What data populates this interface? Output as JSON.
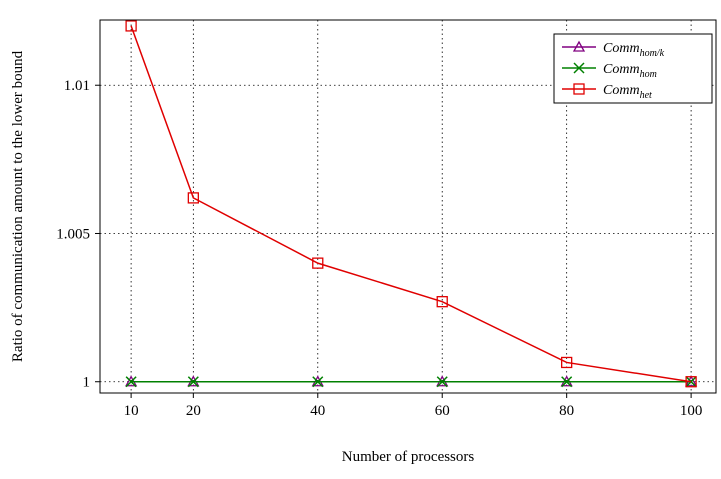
{
  "chart_data": {
    "type": "line",
    "xlabel": "Number of processors",
    "ylabel": "Ratio of communication amount to the lower bound",
    "x": [
      10,
      20,
      40,
      60,
      80,
      100
    ],
    "x_ticks": [
      "10",
      "20",
      "40",
      "60",
      "80",
      "100"
    ],
    "y_ticks": [
      "1",
      "1.005",
      "1.01"
    ],
    "y_tick_values": [
      1.0,
      1.005,
      1.01
    ],
    "xlim": [
      5,
      104
    ],
    "ylim": [
      0.99962,
      1.0122
    ],
    "grid": true,
    "legend_position": "top-right",
    "series": [
      {
        "name": "Comm",
        "subscript": "hom/k",
        "color": "#800080",
        "marker": "triangle",
        "values": [
          1.0,
          1.0,
          1.0,
          1.0,
          1.0,
          1.0
        ]
      },
      {
        "name": "Comm",
        "subscript": "hom",
        "color": "#008000",
        "marker": "x",
        "values": [
          1.0,
          1.0,
          1.0,
          1.0,
          1.0,
          1.0
        ]
      },
      {
        "name": "Comm",
        "subscript": "het",
        "color": "#e00000",
        "marker": "square",
        "values": [
          1.012,
          1.0062,
          1.004,
          1.0027,
          1.00065,
          1.0
        ]
      }
    ]
  }
}
